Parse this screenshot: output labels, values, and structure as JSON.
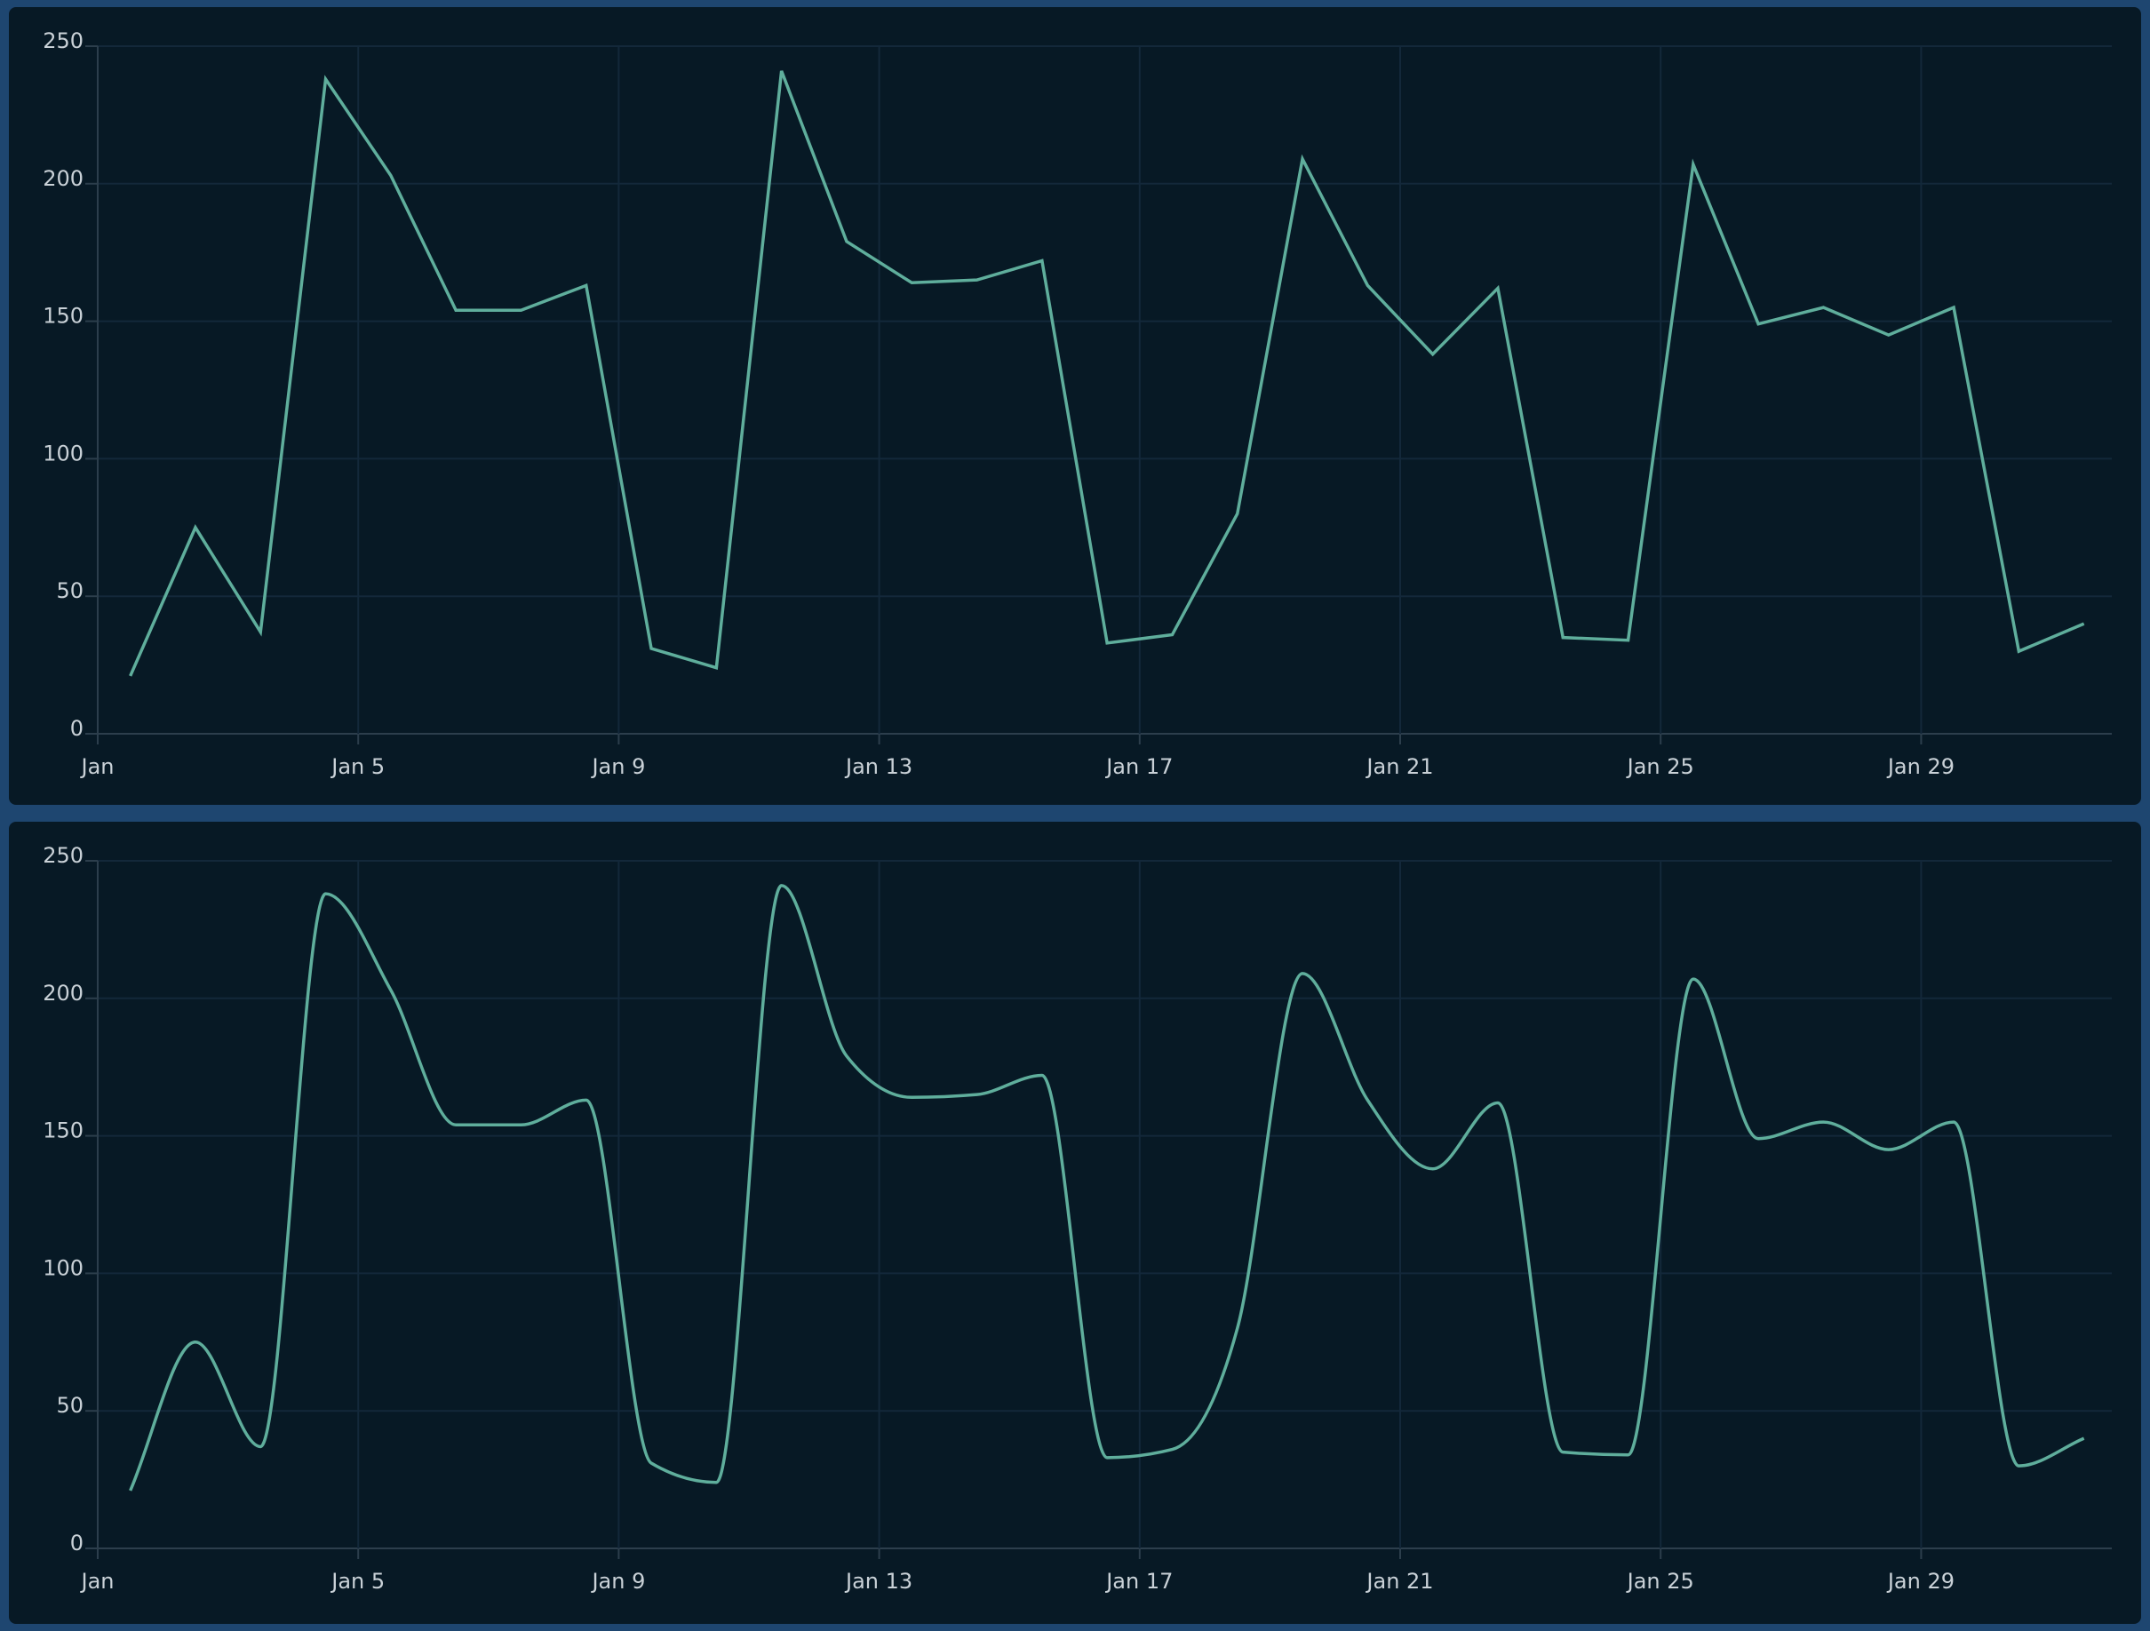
{
  "chart_data": [
    {
      "type": "line",
      "curve": "linear",
      "x": [
        "Jan 1",
        "Jan 2",
        "Jan 3",
        "Jan 4",
        "Jan 5",
        "Jan 6",
        "Jan 7",
        "Jan 8",
        "Jan 9",
        "Jan 10",
        "Jan 11",
        "Jan 12",
        "Jan 13",
        "Jan 14",
        "Jan 15",
        "Jan 16",
        "Jan 17",
        "Jan 18",
        "Jan 19",
        "Jan 20",
        "Jan 21",
        "Jan 22",
        "Jan 23",
        "Jan 24",
        "Jan 25",
        "Jan 26",
        "Jan 27",
        "Jan 28",
        "Jan 29",
        "Jan 30",
        "Jan 31"
      ],
      "values": [
        21,
        75,
        37,
        238,
        203,
        154,
        154,
        163,
        31,
        24,
        241,
        179,
        164,
        165,
        172,
        33,
        36,
        80,
        209,
        163,
        138,
        162,
        35,
        34,
        207,
        149,
        155,
        145,
        155,
        30,
        40
      ],
      "ylim": [
        0,
        250
      ],
      "yticks": [
        "0",
        "50",
        "100",
        "150",
        "200",
        "250"
      ],
      "xticks": [
        "Jan",
        "Jan 5",
        "Jan 9",
        "Jan 13",
        "Jan 17",
        "Jan 21",
        "Jan 25",
        "Jan 29"
      ],
      "grid": true,
      "color": "#5fae9c"
    },
    {
      "type": "line",
      "curve": "smooth",
      "x": [
        "Jan 1",
        "Jan 2",
        "Jan 3",
        "Jan 4",
        "Jan 5",
        "Jan 6",
        "Jan 7",
        "Jan 8",
        "Jan 9",
        "Jan 10",
        "Jan 11",
        "Jan 12",
        "Jan 13",
        "Jan 14",
        "Jan 15",
        "Jan 16",
        "Jan 17",
        "Jan 18",
        "Jan 19",
        "Jan 20",
        "Jan 21",
        "Jan 22",
        "Jan 23",
        "Jan 24",
        "Jan 25",
        "Jan 26",
        "Jan 27",
        "Jan 28",
        "Jan 29",
        "Jan 30",
        "Jan 31"
      ],
      "values": [
        21,
        75,
        37,
        238,
        203,
        154,
        154,
        163,
        31,
        24,
        241,
        179,
        164,
        165,
        172,
        33,
        36,
        80,
        209,
        163,
        138,
        162,
        35,
        34,
        207,
        149,
        155,
        145,
        155,
        30,
        40
      ],
      "ylim": [
        0,
        250
      ],
      "yticks": [
        "0",
        "50",
        "100",
        "150",
        "200",
        "250"
      ],
      "xticks": [
        "Jan",
        "Jan 5",
        "Jan 9",
        "Jan 13",
        "Jan 17",
        "Jan 21",
        "Jan 25",
        "Jan 29"
      ],
      "grid": true,
      "color": "#5fae9c"
    }
  ]
}
